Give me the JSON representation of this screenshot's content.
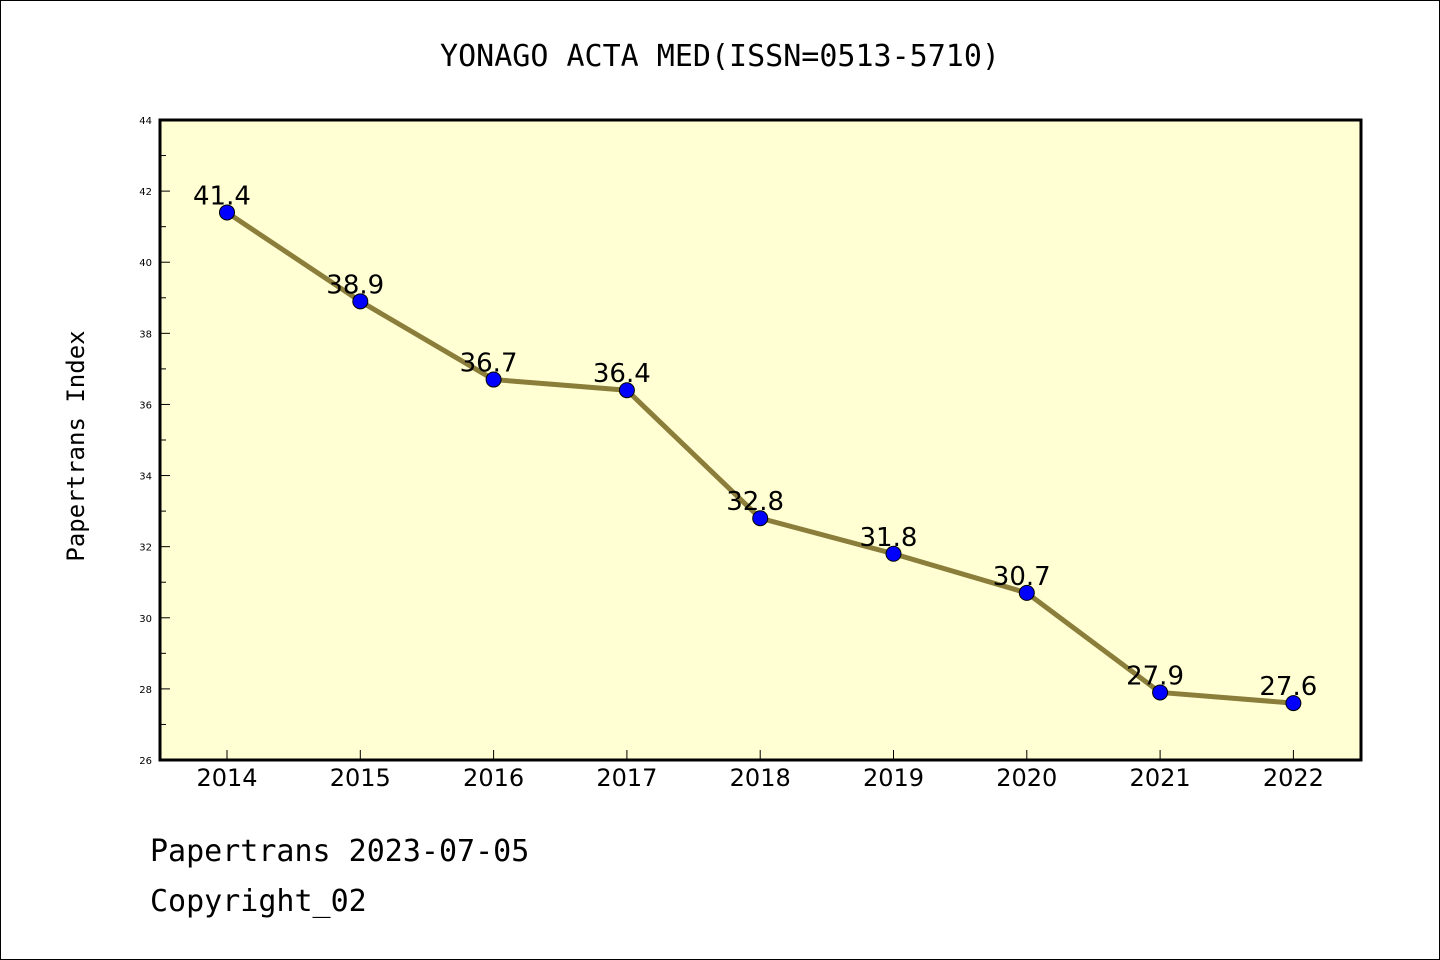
{
  "title": "YONAGO ACTA MED(ISSN=0513-5710)",
  "ylabel": "Papertrans Index",
  "footer": {
    "line1": "Papertrans 2023-07-05",
    "line2": "Copyright_02"
  },
  "colors": {
    "plot_background": "#ffffd3",
    "line": "#8b7d3a",
    "marker": "#0000ff"
  },
  "chart_data": {
    "type": "line",
    "title": "YONAGO ACTA MED(ISSN=0513-5710)",
    "xlabel": "",
    "ylabel": "Papertrans Index",
    "categories": [
      "2014",
      "2015",
      "2016",
      "2017",
      "2018",
      "2019",
      "2020",
      "2021",
      "2022"
    ],
    "series": [
      {
        "values": [
          41.4,
          38.9,
          36.7,
          36.4,
          32.8,
          31.8,
          30.7,
          27.9,
          27.6
        ],
        "data_labels": [
          "41.4",
          "38.9",
          "36.7",
          "36.4",
          "32.8",
          "31.8",
          "30.7",
          "27.9",
          "27.6"
        ]
      }
    ],
    "ylim": [
      26,
      44
    ],
    "yticks": [
      "26",
      "28",
      "30",
      "32",
      "34",
      "36",
      "38",
      "40",
      "42",
      "44"
    ],
    "grid": false,
    "legend": "none"
  }
}
